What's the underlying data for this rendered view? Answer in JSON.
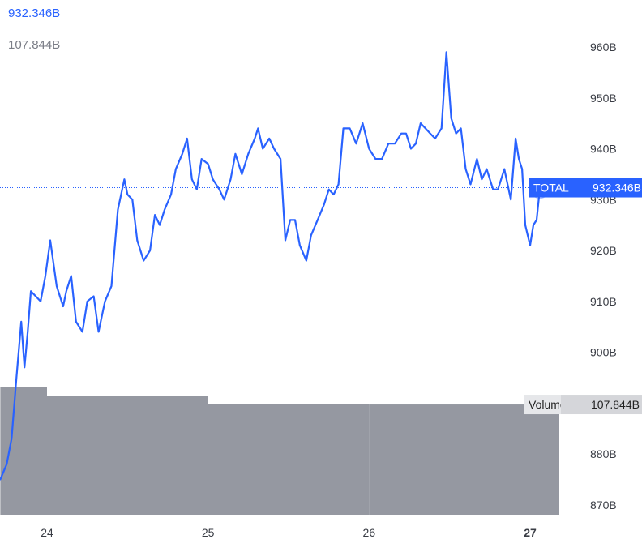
{
  "legend": {
    "price_value": "932.346B",
    "volume_value": "107.844B"
  },
  "colors": {
    "line": "#2962ff",
    "volume": "#9598a1",
    "price_tag": "#2962ff",
    "axis_text": "#3a3d45"
  },
  "chart_data": {
    "type": "line",
    "title": "",
    "xlabel": "",
    "ylabel": "",
    "ylim": [
      867,
      963
    ],
    "xlim": [
      23.71,
      27.06
    ],
    "y_ticks": [
      {
        "value": 960,
        "label": "960B"
      },
      {
        "value": 950,
        "label": "950B"
      },
      {
        "value": 940,
        "label": "940B"
      },
      {
        "value": 930,
        "label": "930B"
      },
      {
        "value": 920,
        "label": "920B"
      },
      {
        "value": 910,
        "label": "910B"
      },
      {
        "value": 900,
        "label": "900B"
      },
      {
        "value": 880,
        "label": "880B"
      },
      {
        "value": 870,
        "label": "870B"
      }
    ],
    "x_ticks": [
      {
        "value": 24,
        "label": "24",
        "bold": false
      },
      {
        "value": 25,
        "label": "25",
        "bold": false
      },
      {
        "value": 26,
        "label": "26",
        "bold": false
      },
      {
        "value": 27,
        "label": "27",
        "bold": true
      }
    ],
    "series": [
      {
        "name": "TOTAL",
        "last_label": "932.346B",
        "x": [
          23.71,
          23.75,
          23.78,
          23.81,
          23.84,
          23.86,
          23.88,
          23.9,
          23.93,
          23.96,
          23.99,
          24.02,
          24.06,
          24.1,
          24.12,
          24.15,
          24.18,
          24.22,
          24.25,
          24.29,
          24.32,
          24.36,
          24.4,
          24.44,
          24.48,
          24.5,
          24.53,
          24.56,
          24.6,
          24.64,
          24.67,
          24.7,
          24.73,
          24.77,
          24.8,
          24.84,
          24.87,
          24.9,
          24.93,
          24.96,
          25.0,
          25.03,
          25.07,
          25.1,
          25.14,
          25.17,
          25.21,
          25.25,
          25.29,
          25.31,
          25.34,
          25.38,
          25.41,
          25.45,
          25.48,
          25.51,
          25.54,
          25.57,
          25.61,
          25.64,
          25.68,
          25.72,
          25.75,
          25.78,
          25.81,
          25.84,
          25.88,
          25.92,
          25.96,
          26.0,
          26.04,
          26.08,
          26.12,
          26.16,
          26.2,
          26.23,
          26.26,
          26.29,
          26.32,
          26.35,
          26.38,
          26.41,
          26.45,
          26.48,
          26.51,
          26.54,
          26.57,
          26.6,
          26.63,
          26.67,
          26.7,
          26.73,
          26.77,
          26.8,
          26.84,
          26.88,
          26.91,
          26.93,
          26.95,
          26.97,
          27.0,
          27.02,
          27.04,
          27.06
        ],
        "y": [
          875,
          878,
          883,
          895,
          906,
          897,
          904,
          912,
          911,
          910,
          915,
          922,
          913,
          909,
          912,
          915,
          906,
          904,
          910,
          911,
          904,
          910,
          913,
          928,
          934,
          931,
          930,
          922,
          918,
          920,
          927,
          925,
          928,
          931,
          936,
          939,
          942,
          934,
          932,
          938,
          937,
          934,
          932,
          930,
          934,
          939,
          935,
          939,
          942,
          944,
          940,
          942,
          940,
          938,
          922,
          926,
          926,
          921,
          918,
          923,
          926,
          929,
          932,
          931,
          933,
          944,
          944,
          941,
          945,
          940,
          938,
          938,
          941,
          941,
          943,
          943,
          940,
          941,
          945,
          944,
          943,
          942,
          944,
          959,
          946,
          943,
          944,
          936,
          933,
          938,
          934,
          936,
          932,
          932,
          936,
          930,
          942,
          938,
          936,
          925,
          921,
          925,
          926,
          932
        ]
      }
    ],
    "volume": {
      "name": "Volume",
      "last_label": "107.844B",
      "bars": [
        {
          "x0": 23.71,
          "x1": 24.0,
          "value": 125
        },
        {
          "x0": 24.0,
          "x1": 25.0,
          "value": 116
        },
        {
          "x0": 25.0,
          "x1": 26.0,
          "value": 108
        },
        {
          "x0": 26.0,
          "x1": 27.18,
          "value": 107.844
        }
      ]
    },
    "grid": false,
    "legend": "top-left"
  }
}
